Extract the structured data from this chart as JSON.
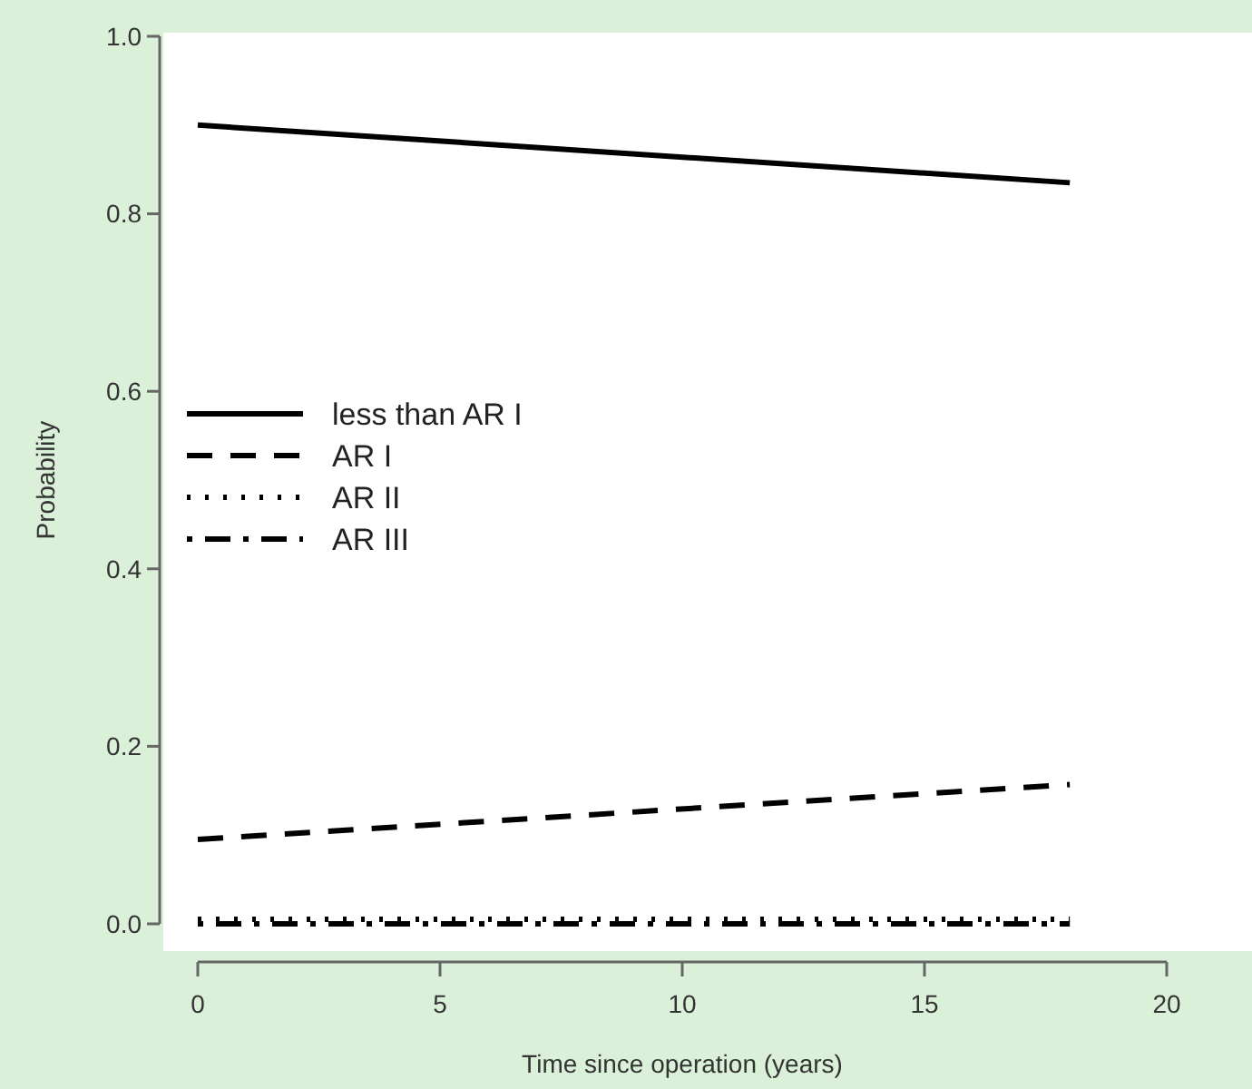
{
  "chart_data": {
    "type": "line",
    "xlabel": "Time since operation (years)",
    "ylabel": "Probability",
    "x": [
      0,
      18
    ],
    "series": [
      {
        "name": "less than AR I",
        "color": "#000000",
        "values": [
          0.9,
          0.835
        ],
        "line_style": "solid"
      },
      {
        "name": "AR I",
        "color": "#000000",
        "values": [
          0.095,
          0.157
        ],
        "line_style": "dashed"
      },
      {
        "name": "AR II",
        "color": "#000000",
        "values": [
          0.005,
          0.005
        ],
        "line_style": "dotted"
      },
      {
        "name": "AR III",
        "color": "#000000",
        "values": [
          0.0,
          0.0
        ],
        "line_style": "dashdot"
      }
    ],
    "xlim": [
      0,
      20
    ],
    "xticks": [
      0,
      5,
      10,
      15,
      20
    ],
    "ylim": [
      0,
      1
    ],
    "yticks": [
      {
        "value": 0,
        "label": "0.0"
      },
      0.2,
      0.4,
      0.6,
      0.8,
      {
        "value": 1,
        "label": "1.0"
      }
    ],
    "grid": false,
    "legend": "left"
  }
}
